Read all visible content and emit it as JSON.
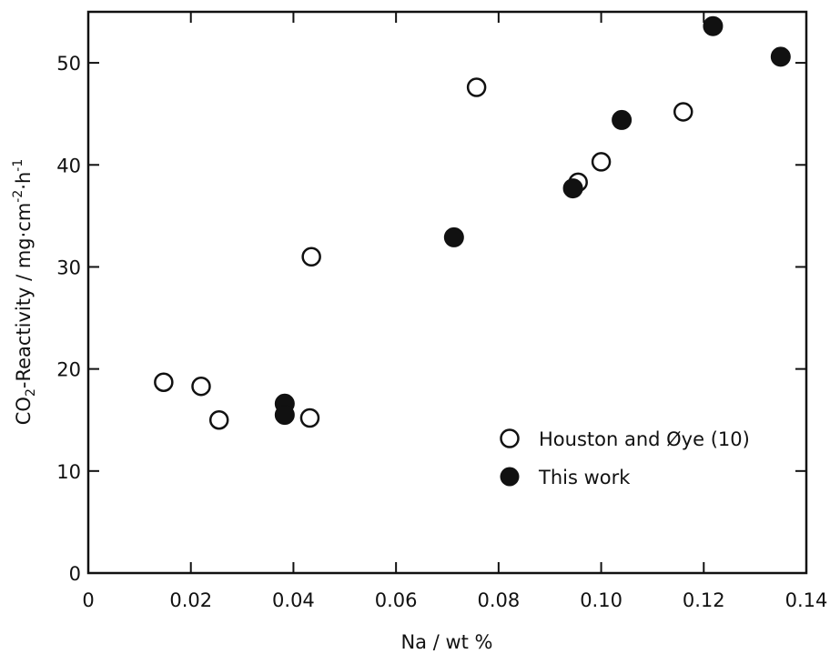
{
  "chart_data": {
    "type": "scatter",
    "title": "",
    "xlabel": "Na / wt %",
    "ylabel": {
      "prefix": "CO",
      "sub": "2",
      "mid": "-Reactivity / mg·cm",
      "sup1": "-2",
      "mid2": "·h",
      "sup2": "-1"
    },
    "xlim": [
      0,
      0.14
    ],
    "ylim": [
      0,
      55
    ],
    "x_ticks": [
      "0",
      "0.02",
      "0.04",
      "0.06",
      "0.08",
      "0.10",
      "0.12",
      "0.14"
    ],
    "y_ticks": [
      "0",
      "10",
      "20",
      "30",
      "40",
      "50"
    ],
    "x_tick_values": [
      0,
      0.02,
      0.04,
      0.06,
      0.08,
      0.1,
      0.12,
      0.14
    ],
    "y_tick_values": [
      0,
      10,
      20,
      30,
      40,
      50
    ],
    "grid": false,
    "legend_position": "bottom-right",
    "series": [
      {
        "name": "Houston and Øye (10)",
        "marker": "open-circle",
        "points": [
          {
            "x": 0.0147,
            "y": 18.7
          },
          {
            "x": 0.022,
            "y": 18.3
          },
          {
            "x": 0.0255,
            "y": 15.0
          },
          {
            "x": 0.0435,
            "y": 31.0
          },
          {
            "x": 0.0432,
            "y": 15.2
          },
          {
            "x": 0.0757,
            "y": 47.6
          },
          {
            "x": 0.0955,
            "y": 38.3
          },
          {
            "x": 0.1,
            "y": 40.3
          },
          {
            "x": 0.116,
            "y": 45.2
          }
        ]
      },
      {
        "name": "This work",
        "marker": "filled-circle",
        "points": [
          {
            "x": 0.0383,
            "y": 16.6
          },
          {
            "x": 0.0383,
            "y": 15.5
          },
          {
            "x": 0.0713,
            "y": 32.9
          },
          {
            "x": 0.0945,
            "y": 37.7
          },
          {
            "x": 0.104,
            "y": 44.4
          },
          {
            "x": 0.1218,
            "y": 53.6
          },
          {
            "x": 0.135,
            "y": 50.6
          }
        ]
      }
    ]
  }
}
